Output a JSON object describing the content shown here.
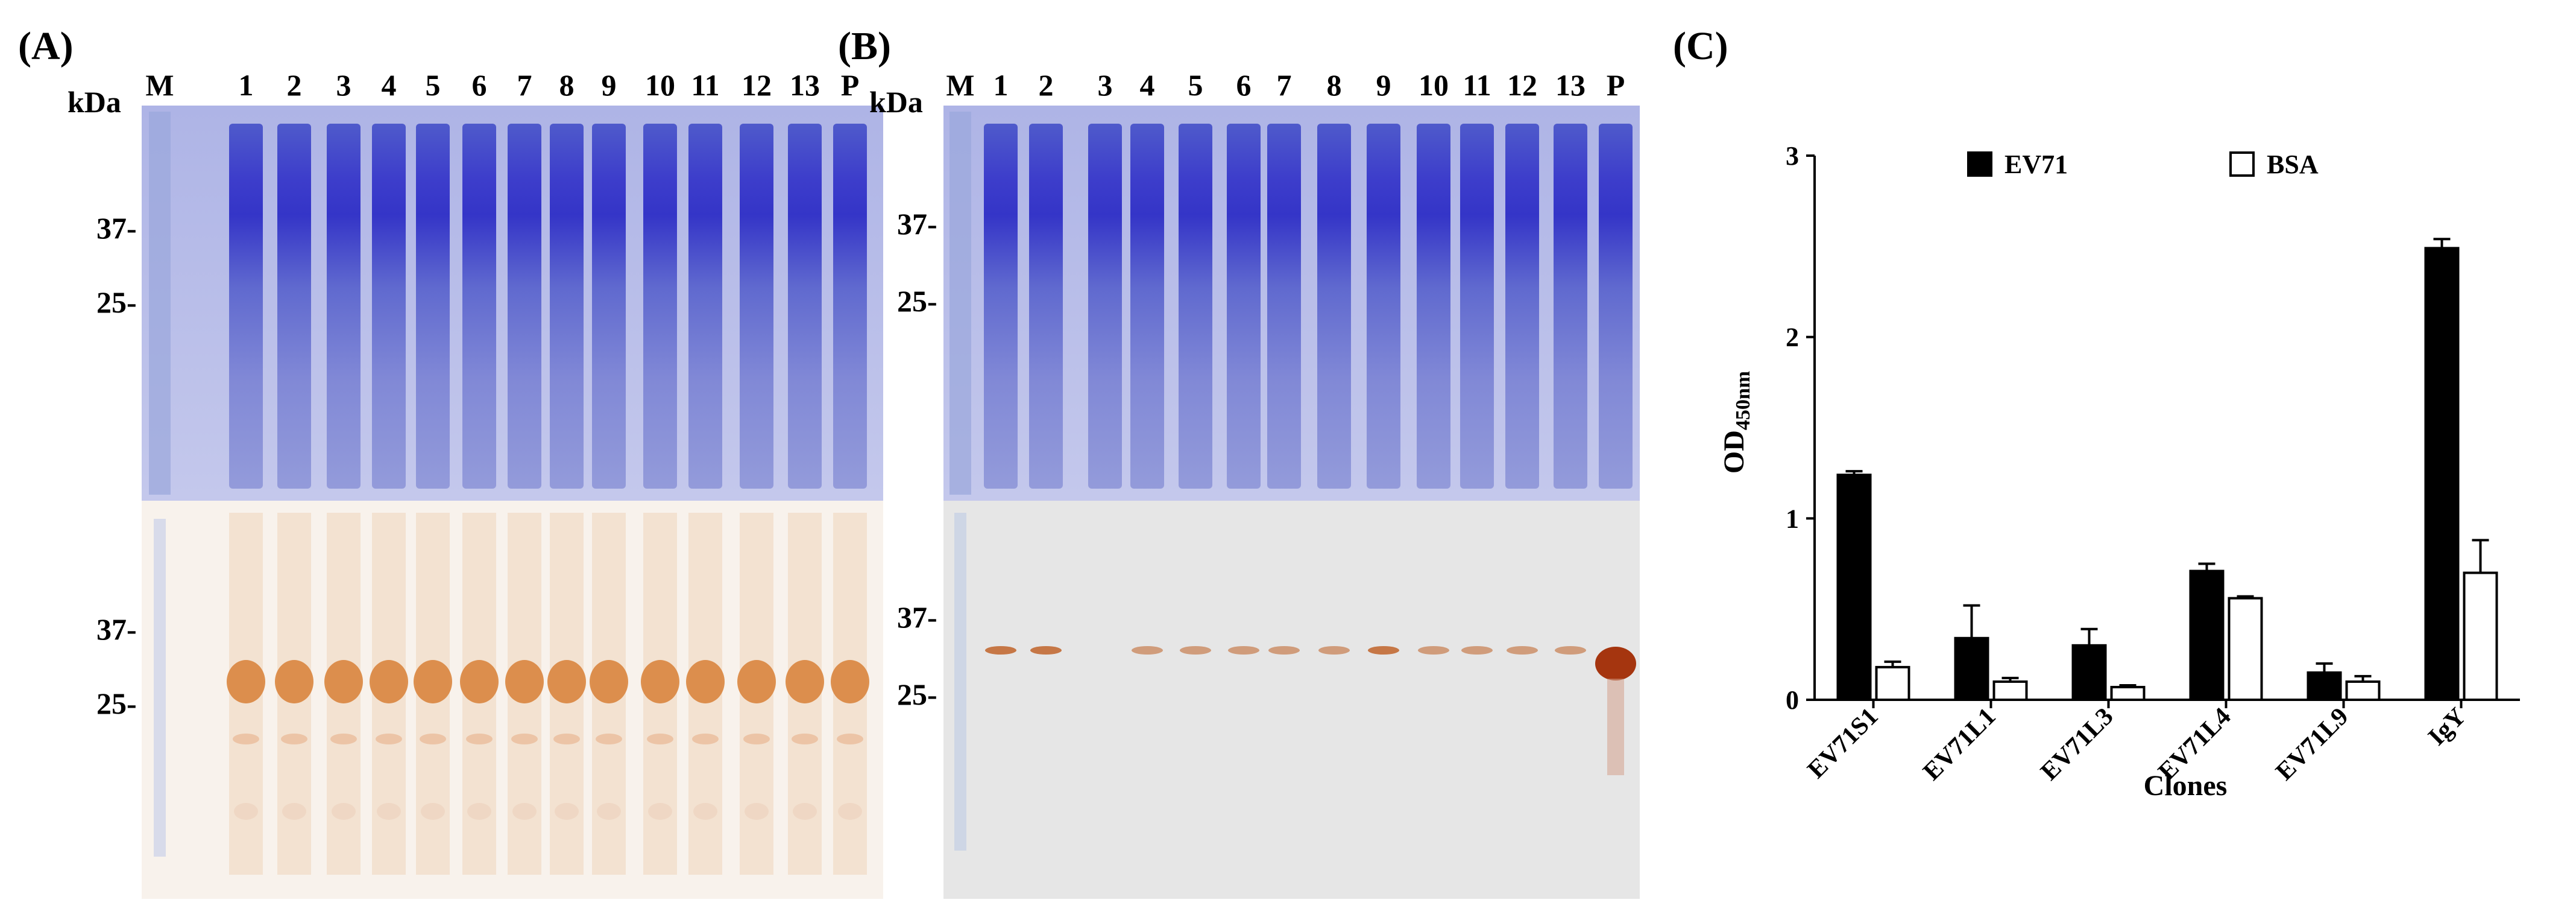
{
  "panelA": {
    "tag": "(A)",
    "kda": "kDa",
    "lanes": [
      "M",
      "1",
      "2",
      "3",
      "4",
      "5",
      "6",
      "7",
      "8",
      "9",
      "10",
      "11",
      "12",
      "13",
      "P"
    ],
    "markers_top": [
      "37-",
      "25-"
    ],
    "markers_bottom": [
      "37-",
      "25-"
    ]
  },
  "panelB": {
    "tag": "(B)",
    "kda": "kDa",
    "lanes": [
      "M",
      "1",
      "2",
      "3",
      "4",
      "5",
      "6",
      "7",
      "8",
      "9",
      "10",
      "11",
      "12",
      "13",
      "P"
    ],
    "markers_top": [
      "37-",
      "25-"
    ],
    "markers_bottom": [
      "37-",
      "25-"
    ]
  },
  "panelC": {
    "tag": "(C)",
    "chart_data": {
      "type": "bar",
      "categories": [
        "EV71S1",
        "EV71L1",
        "EV71L3",
        "EV71L4",
        "EV71L9",
        "IgY"
      ],
      "series": [
        {
          "name": "EV71",
          "color": "#000000",
          "values": [
            1.24,
            0.34,
            0.3,
            0.71,
            0.15,
            2.49
          ],
          "errors": [
            0.02,
            0.18,
            0.09,
            0.04,
            0.05,
            0.05
          ]
        },
        {
          "name": "BSA",
          "color": "#ffffff",
          "values": [
            0.18,
            0.1,
            0.07,
            0.56,
            0.1,
            0.7
          ],
          "errors": [
            0.03,
            0.02,
            0.01,
            0.01,
            0.03,
            0.18
          ]
        }
      ],
      "xlabel": "Clones",
      "ylabel_main": "OD",
      "ylabel_sub": "450nm",
      "ylim": [
        0,
        3
      ],
      "yticks": [
        "0",
        "1",
        "2",
        "3"
      ],
      "legend_placement": "top",
      "grid": false
    }
  }
}
